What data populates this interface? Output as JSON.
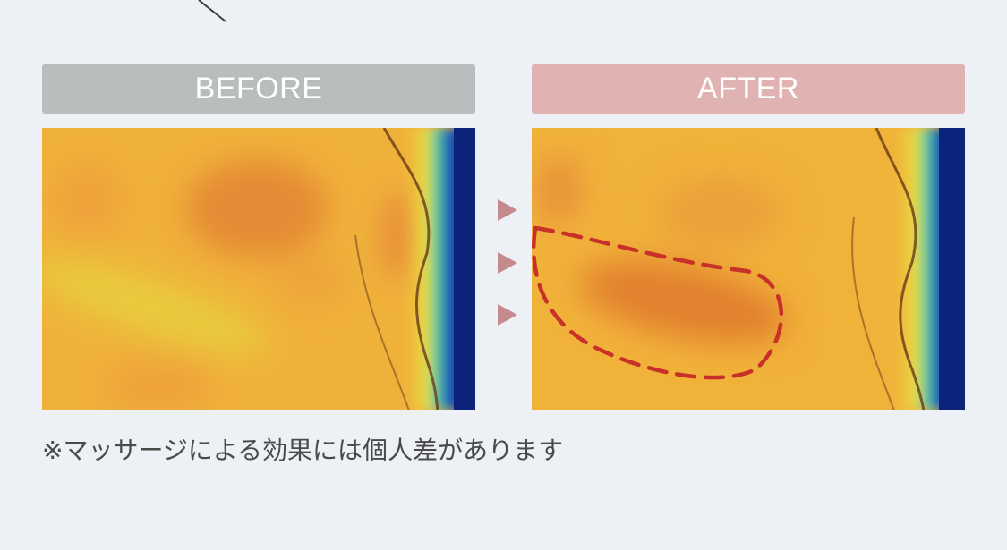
{
  "comparison": {
    "before_label": "BEFORE",
    "after_label": "AFTER",
    "before_label_color": "#b9bdbd",
    "after_label_color": "#e0b2b2",
    "arrow_color": "#c48a8e",
    "highlight_outline_color": "#c8302a",
    "before_image_icon": "thermal-image-before",
    "after_image_icon": "thermal-image-after"
  },
  "disclaimer": "※マッサージによる効果には個人差があります"
}
